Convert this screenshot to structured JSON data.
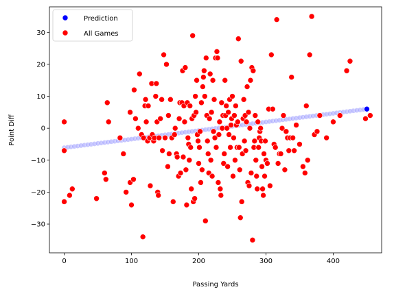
{
  "chart_data": {
    "type": "scatter",
    "xlabel": "Passing Yards",
    "ylabel": "Point Diff",
    "xlim": [
      -22,
      472
    ],
    "ylim": [
      -39,
      38
    ],
    "xticks": [
      0,
      100,
      200,
      300,
      400
    ],
    "yticks": [
      -30,
      -20,
      -10,
      0,
      10,
      20,
      30
    ],
    "legend_position": "top-left",
    "grid": false,
    "series": [
      {
        "name": "Prediction",
        "color": "#0000ff",
        "marker": "circle",
        "description_line": {
          "x0": 0,
          "y0": -6.1,
          "x1": 450,
          "y1": 6.0,
          "step": 5
        }
      },
      {
        "name": "All Games",
        "color": "#ff0000",
        "marker": "circle",
        "points": [
          [
            0,
            2
          ],
          [
            0,
            -7
          ],
          [
            0,
            -23
          ],
          [
            8,
            -21
          ],
          [
            12,
            -19
          ],
          [
            48,
            -22
          ],
          [
            60,
            -14
          ],
          [
            62,
            -16
          ],
          [
            64,
            8
          ],
          [
            66,
            2
          ],
          [
            83,
            -3
          ],
          [
            88,
            -8
          ],
          [
            92,
            -20
          ],
          [
            98,
            -17
          ],
          [
            98,
            5
          ],
          [
            100,
            -24
          ],
          [
            103,
            -16
          ],
          [
            104,
            12
          ],
          [
            106,
            3
          ],
          [
            110,
            0
          ],
          [
            112,
            17
          ],
          [
            115,
            -2
          ],
          [
            117,
            -34
          ],
          [
            118,
            -3
          ],
          [
            120,
            7
          ],
          [
            121,
            9
          ],
          [
            122,
            2
          ],
          [
            124,
            -4
          ],
          [
            125,
            7
          ],
          [
            127,
            -3
          ],
          [
            128,
            -18
          ],
          [
            130,
            14
          ],
          [
            131,
            -2
          ],
          [
            133,
            -4
          ],
          [
            134,
            -3
          ],
          [
            136,
            10
          ],
          [
            137,
            14
          ],
          [
            138,
            2
          ],
          [
            139,
            -20
          ],
          [
            140,
            -21
          ],
          [
            141,
            -3
          ],
          [
            143,
            3
          ],
          [
            145,
            9
          ],
          [
            146,
            -7
          ],
          [
            148,
            23
          ],
          [
            150,
            -3
          ],
          [
            152,
            20
          ],
          [
            154,
            -12
          ],
          [
            155,
            4
          ],
          [
            156,
            -8
          ],
          [
            158,
            9
          ],
          [
            160,
            -3
          ],
          [
            162,
            -23
          ],
          [
            164,
            -2
          ],
          [
            165,
            0
          ],
          [
            167,
            -8
          ],
          [
            168,
            -9
          ],
          [
            170,
            -15
          ],
          [
            171,
            3
          ],
          [
            172,
            8
          ],
          [
            173,
            -14
          ],
          [
            175,
            8
          ],
          [
            176,
            18
          ],
          [
            177,
            -9
          ],
          [
            178,
            7
          ],
          [
            179,
            2
          ],
          [
            180,
            19
          ],
          [
            181,
            -13
          ],
          [
            182,
            -24
          ],
          [
            183,
            8
          ],
          [
            184,
            -3
          ],
          [
            185,
            -5
          ],
          [
            186,
            -10
          ],
          [
            187,
            7
          ],
          [
            188,
            -6
          ],
          [
            189,
            -19
          ],
          [
            190,
            3
          ],
          [
            191,
            29
          ],
          [
            192,
            -23
          ],
          [
            193,
            4
          ],
          [
            194,
            -22
          ],
          [
            195,
            10
          ],
          [
            196,
            5
          ],
          [
            197,
            15
          ],
          [
            198,
            -2
          ],
          [
            199,
            -4
          ],
          [
            200,
            -11
          ],
          [
            201,
            -6
          ],
          [
            202,
            -1
          ],
          [
            203,
            -17
          ],
          [
            204,
            8
          ],
          [
            205,
            -13
          ],
          [
            206,
            13
          ],
          [
            207,
            16
          ],
          [
            208,
            18
          ],
          [
            209,
            10
          ],
          [
            210,
            -29
          ],
          [
            211,
            22
          ],
          [
            212,
            4
          ],
          [
            213,
            -4
          ],
          [
            214,
            -8
          ],
          [
            215,
            -14
          ],
          [
            216,
            3
          ],
          [
            217,
            17
          ],
          [
            218,
            -10
          ],
          [
            219,
            5
          ],
          [
            220,
            -15
          ],
          [
            221,
            15
          ],
          [
            222,
            -1
          ],
          [
            223,
            9
          ],
          [
            224,
            -3
          ],
          [
            225,
            22
          ],
          [
            226,
            -6
          ],
          [
            227,
            24
          ],
          [
            228,
            22
          ],
          [
            229,
            -17
          ],
          [
            230,
            -2
          ],
          [
            231,
            2
          ],
          [
            232,
            -19
          ],
          [
            233,
            -21
          ],
          [
            234,
            8
          ],
          [
            235,
            0
          ],
          [
            236,
            4
          ],
          [
            237,
            -11
          ],
          [
            238,
            -8
          ],
          [
            239,
            15
          ],
          [
            240,
            4
          ],
          [
            241,
            7
          ],
          [
            242,
            0
          ],
          [
            243,
            -12
          ],
          [
            244,
            5
          ],
          [
            245,
            -2
          ],
          [
            246,
            9
          ],
          [
            247,
            -6
          ],
          [
            248,
            1
          ],
          [
            249,
            3
          ],
          [
            250,
            10
          ],
          [
            251,
            -15
          ],
          [
            252,
            -3
          ],
          [
            253,
            4
          ],
          [
            254,
            -10
          ],
          [
            255,
            7
          ],
          [
            256,
            1
          ],
          [
            257,
            -6
          ],
          [
            258,
            2
          ],
          [
            259,
            28
          ],
          [
            260,
            -6
          ],
          [
            261,
            -13
          ],
          [
            262,
            -28
          ],
          [
            263,
            21
          ],
          [
            264,
            -23
          ],
          [
            265,
            -8
          ],
          [
            266,
            3
          ],
          [
            267,
            9
          ],
          [
            268,
            -4
          ],
          [
            269,
            4
          ],
          [
            270,
            -7
          ],
          [
            271,
            2
          ],
          [
            272,
            13
          ],
          [
            273,
            -17
          ],
          [
            274,
            5
          ],
          [
            275,
            -18
          ],
          [
            276,
            0
          ],
          [
            277,
            15
          ],
          [
            278,
            -14
          ],
          [
            279,
            19
          ],
          [
            280,
            -35
          ],
          [
            281,
            18
          ],
          [
            282,
            -6
          ],
          [
            283,
            -4
          ],
          [
            284,
            4
          ],
          [
            285,
            -10
          ],
          [
            286,
            -15
          ],
          [
            287,
            -19
          ],
          [
            288,
            2
          ],
          [
            289,
            -6
          ],
          [
            290,
            -3
          ],
          [
            291,
            -1
          ],
          [
            292,
            0
          ],
          [
            293,
            -4
          ],
          [
            294,
            -12
          ],
          [
            295,
            -19
          ],
          [
            296,
            -21
          ],
          [
            297,
            -8
          ],
          [
            298,
            -15
          ],
          [
            299,
            -4
          ],
          [
            300,
            -10
          ],
          [
            302,
            -11
          ],
          [
            304,
            6
          ],
          [
            306,
            -18
          ],
          [
            308,
            23
          ],
          [
            310,
            6
          ],
          [
            312,
            -5
          ],
          [
            314,
            -6
          ],
          [
            316,
            34
          ],
          [
            318,
            -11
          ],
          [
            320,
            -8
          ],
          [
            322,
            -8
          ],
          [
            324,
            0
          ],
          [
            326,
            4
          ],
          [
            328,
            -13
          ],
          [
            330,
            -1
          ],
          [
            332,
            -3
          ],
          [
            334,
            -7
          ],
          [
            336,
            -3
          ],
          [
            338,
            16
          ],
          [
            340,
            -3
          ],
          [
            342,
            -7
          ],
          [
            345,
            1
          ],
          [
            350,
            -5
          ],
          [
            355,
            -12
          ],
          [
            358,
            -14
          ],
          [
            360,
            7
          ],
          [
            362,
            -10
          ],
          [
            365,
            23
          ],
          [
            368,
            35
          ],
          [
            372,
            -2
          ],
          [
            376,
            -1
          ],
          [
            380,
            4
          ],
          [
            390,
            -3
          ],
          [
            400,
            2
          ],
          [
            410,
            4
          ],
          [
            420,
            18
          ],
          [
            425,
            21
          ],
          [
            448,
            3
          ],
          [
            455,
            4
          ]
        ]
      }
    ]
  }
}
